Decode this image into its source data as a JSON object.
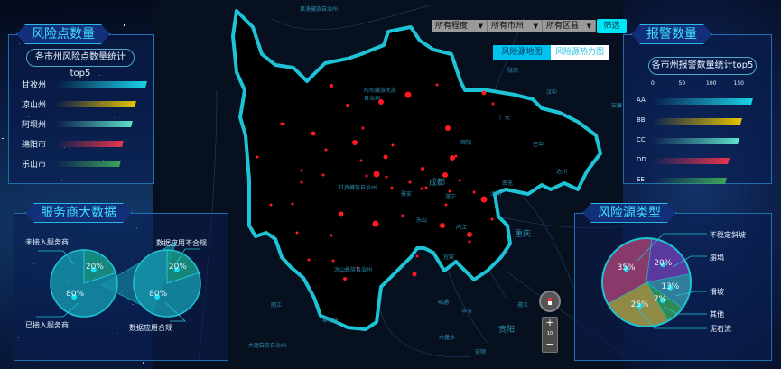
{
  "filters": {
    "level": "所有程度",
    "city": "所有市州",
    "county": "所有区县",
    "submit": "筛选"
  },
  "map_tabs": {
    "source_map": "风险源地图",
    "heat_map": "风险源热力图",
    "active": "source_map"
  },
  "map_labels": [
    "阿坝藏族羌族自治州",
    "甘孜藏族自治州",
    "凉山彝族自治州",
    "成都",
    "绵阳",
    "广元",
    "巴中",
    "达州",
    "南充",
    "遂宁",
    "雅安",
    "乐山",
    "内江",
    "宜宾",
    "重庆",
    "泸州",
    "陇南",
    "汉中",
    "安康",
    "昭通",
    "毕节",
    "贵阳",
    "遵义",
    "六盘水",
    "安顺",
    "丽江",
    "攀枝花",
    "大理白族自治州",
    "果洛藏族自治州"
  ],
  "map_controls": {
    "zoom_level": "10",
    "zoom_in": "+",
    "zoom_out": "−"
  },
  "risk_points": {
    "title": "风险点数量",
    "subtitle": "各市州风险点数量统计top5",
    "items": [
      {
        "name": "甘孜州",
        "value_pct": 100,
        "color": "#19d3e6"
      },
      {
        "name": "凉山州",
        "value_pct": 88,
        "color": "#e6c200"
      },
      {
        "name": "阿坝州",
        "value_pct": 84,
        "color": "#5fe0c8"
      },
      {
        "name": "绵阳市",
        "value_pct": 74,
        "color": "#e8344e"
      },
      {
        "name": "乐山市",
        "value_pct": 71,
        "color": "#3ba35a"
      }
    ]
  },
  "alarms": {
    "title": "报警数量",
    "subtitle": "各市州报警数量统计top5",
    "axis_ticks": [
      "0",
      "50",
      "100",
      "150"
    ],
    "axis_max": 175,
    "items": [
      {
        "name": "AA",
        "value": 181,
        "color": "#19d3e6"
      },
      {
        "name": "BB",
        "value": 161,
        "color": "#e6c200"
      },
      {
        "name": "CC",
        "value": 155,
        "color": "#5fe0c8"
      },
      {
        "name": "DD",
        "value": 138,
        "color": "#e8344e"
      },
      {
        "name": "EE",
        "value": 133,
        "color": "#3ba35a"
      }
    ]
  },
  "service": {
    "title": "服务商大数据",
    "pie1": {
      "slices": [
        {
          "label": "未接入服务商",
          "pct": "20%",
          "value": 20,
          "color": "#1a9a86"
        },
        {
          "label": "已接入服务商",
          "pct": "80%",
          "value": 80,
          "color": "#1591a8"
        }
      ]
    },
    "pie2": {
      "slices": [
        {
          "label": "数据应用不合规",
          "pct": "20%",
          "value": 20,
          "color": "#1a9a86"
        },
        {
          "label": "数据应用合规",
          "pct": "80%",
          "value": 80,
          "color": "#1591a8"
        }
      ]
    }
  },
  "risk_types": {
    "title": "风险源类型",
    "slices": [
      {
        "label": "不稳定斜坡",
        "pct": "",
        "value": 0,
        "color": "#8a3a7a"
      },
      {
        "label": "崩塌",
        "pct": "20%",
        "value": 20,
        "color": "#5a3aa0"
      },
      {
        "label": "滑坡",
        "pct": "13%",
        "value": 13,
        "color": "#2f7f9a"
      },
      {
        "label": "其他",
        "pct": "7%",
        "value": 7,
        "color": "#2f8a55"
      },
      {
        "label": "泥石流",
        "pct": "25%",
        "value": 25,
        "color": "#8f8a45"
      },
      {
        "label": "",
        "pct": "35%",
        "value": 35,
        "color": "#8a3a6a"
      }
    ]
  }
}
